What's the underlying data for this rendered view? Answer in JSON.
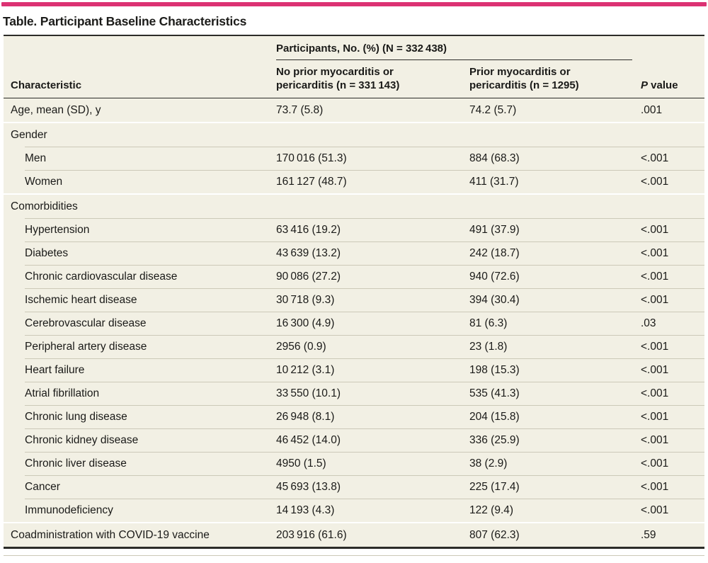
{
  "colors": {
    "accent": "#dc3273",
    "row_bg": "#f2f0e4",
    "rule_dark": "#2c2c28",
    "separator": "#ccc9b8",
    "text": "#1a1a18"
  },
  "title": "Table. Participant Baseline Characteristics",
  "table": {
    "header": {
      "characteristic": "Characteristic",
      "group_header": "Participants, No. (%) (N = 332 438)",
      "col1_line1": "No prior myocarditis or",
      "col1_line2": "pericarditis (n = 331 143)",
      "col2_line1": "Prior myocarditis or",
      "col2_line2": "pericarditis (n = 1295)",
      "p_italic": "P",
      "p_rest": " value"
    },
    "rows": [
      {
        "label": "Age, mean (SD), y",
        "indent": false,
        "sep": "none",
        "v1": "73.7 (5.8)",
        "v2": "74.2 (5.7)",
        "p": ".001"
      },
      {
        "label": "Gender",
        "indent": false,
        "sep": "gap",
        "v1": "",
        "v2": "",
        "p": ""
      },
      {
        "label": "Men",
        "indent": true,
        "sep": "line",
        "v1": "170 016 (51.3)",
        "v2": "884 (68.3)",
        "p": "<.001"
      },
      {
        "label": "Women",
        "indent": true,
        "sep": "line",
        "v1": "161 127 (48.7)",
        "v2": "411 (31.7)",
        "p": "<.001"
      },
      {
        "label": "Comorbidities",
        "indent": false,
        "sep": "gap",
        "v1": "",
        "v2": "",
        "p": ""
      },
      {
        "label": "Hypertension",
        "indent": true,
        "sep": "line",
        "v1": "63 416 (19.2)",
        "v2": "491 (37.9)",
        "p": "<.001"
      },
      {
        "label": "Diabetes",
        "indent": true,
        "sep": "line",
        "v1": "43 639 (13.2)",
        "v2": "242 (18.7)",
        "p": "<.001"
      },
      {
        "label": "Chronic cardiovascular disease",
        "indent": true,
        "sep": "line",
        "v1": "90 086 (27.2)",
        "v2": "940 (72.6)",
        "p": "<.001"
      },
      {
        "label": "Ischemic heart disease",
        "indent": true,
        "sep": "line",
        "v1": "30 718 (9.3)",
        "v2": "394 (30.4)",
        "p": "<.001"
      },
      {
        "label": "Cerebrovascular disease",
        "indent": true,
        "sep": "line",
        "v1": "16 300 (4.9)",
        "v2": "81 (6.3)",
        "p": ".03"
      },
      {
        "label": "Peripheral artery disease",
        "indent": true,
        "sep": "line",
        "v1": "2956 (0.9)",
        "v2": "23 (1.8)",
        "p": "<.001"
      },
      {
        "label": "Heart failure",
        "indent": true,
        "sep": "line",
        "v1": "10 212 (3.1)",
        "v2": "198 (15.3)",
        "p": "<.001"
      },
      {
        "label": "Atrial fibrillation",
        "indent": true,
        "sep": "line",
        "v1": "33 550 (10.1)",
        "v2": "535 (41.3)",
        "p": "<.001"
      },
      {
        "label": "Chronic lung disease",
        "indent": true,
        "sep": "line",
        "v1": "26 948 (8.1)",
        "v2": "204 (15.8)",
        "p": "<.001"
      },
      {
        "label": "Chronic kidney disease",
        "indent": true,
        "sep": "line",
        "v1": "46 452 (14.0)",
        "v2": "336 (25.9)",
        "p": "<.001"
      },
      {
        "label": "Chronic liver disease",
        "indent": true,
        "sep": "line",
        "v1": "4950 (1.5)",
        "v2": "38 (2.9)",
        "p": "<.001"
      },
      {
        "label": "Cancer",
        "indent": true,
        "sep": "line",
        "v1": "45 693 (13.8)",
        "v2": "225 (17.4)",
        "p": "<.001"
      },
      {
        "label": "Immunodeficiency",
        "indent": true,
        "sep": "line",
        "v1": "14 193 (4.3)",
        "v2": "122 (9.4)",
        "p": "<.001"
      },
      {
        "label": "Coadministration with COVID-19 vaccine",
        "indent": false,
        "sep": "gap",
        "v1": "203 916 (61.6)",
        "v2": "807 (62.3)",
        "p": ".59"
      }
    ]
  }
}
